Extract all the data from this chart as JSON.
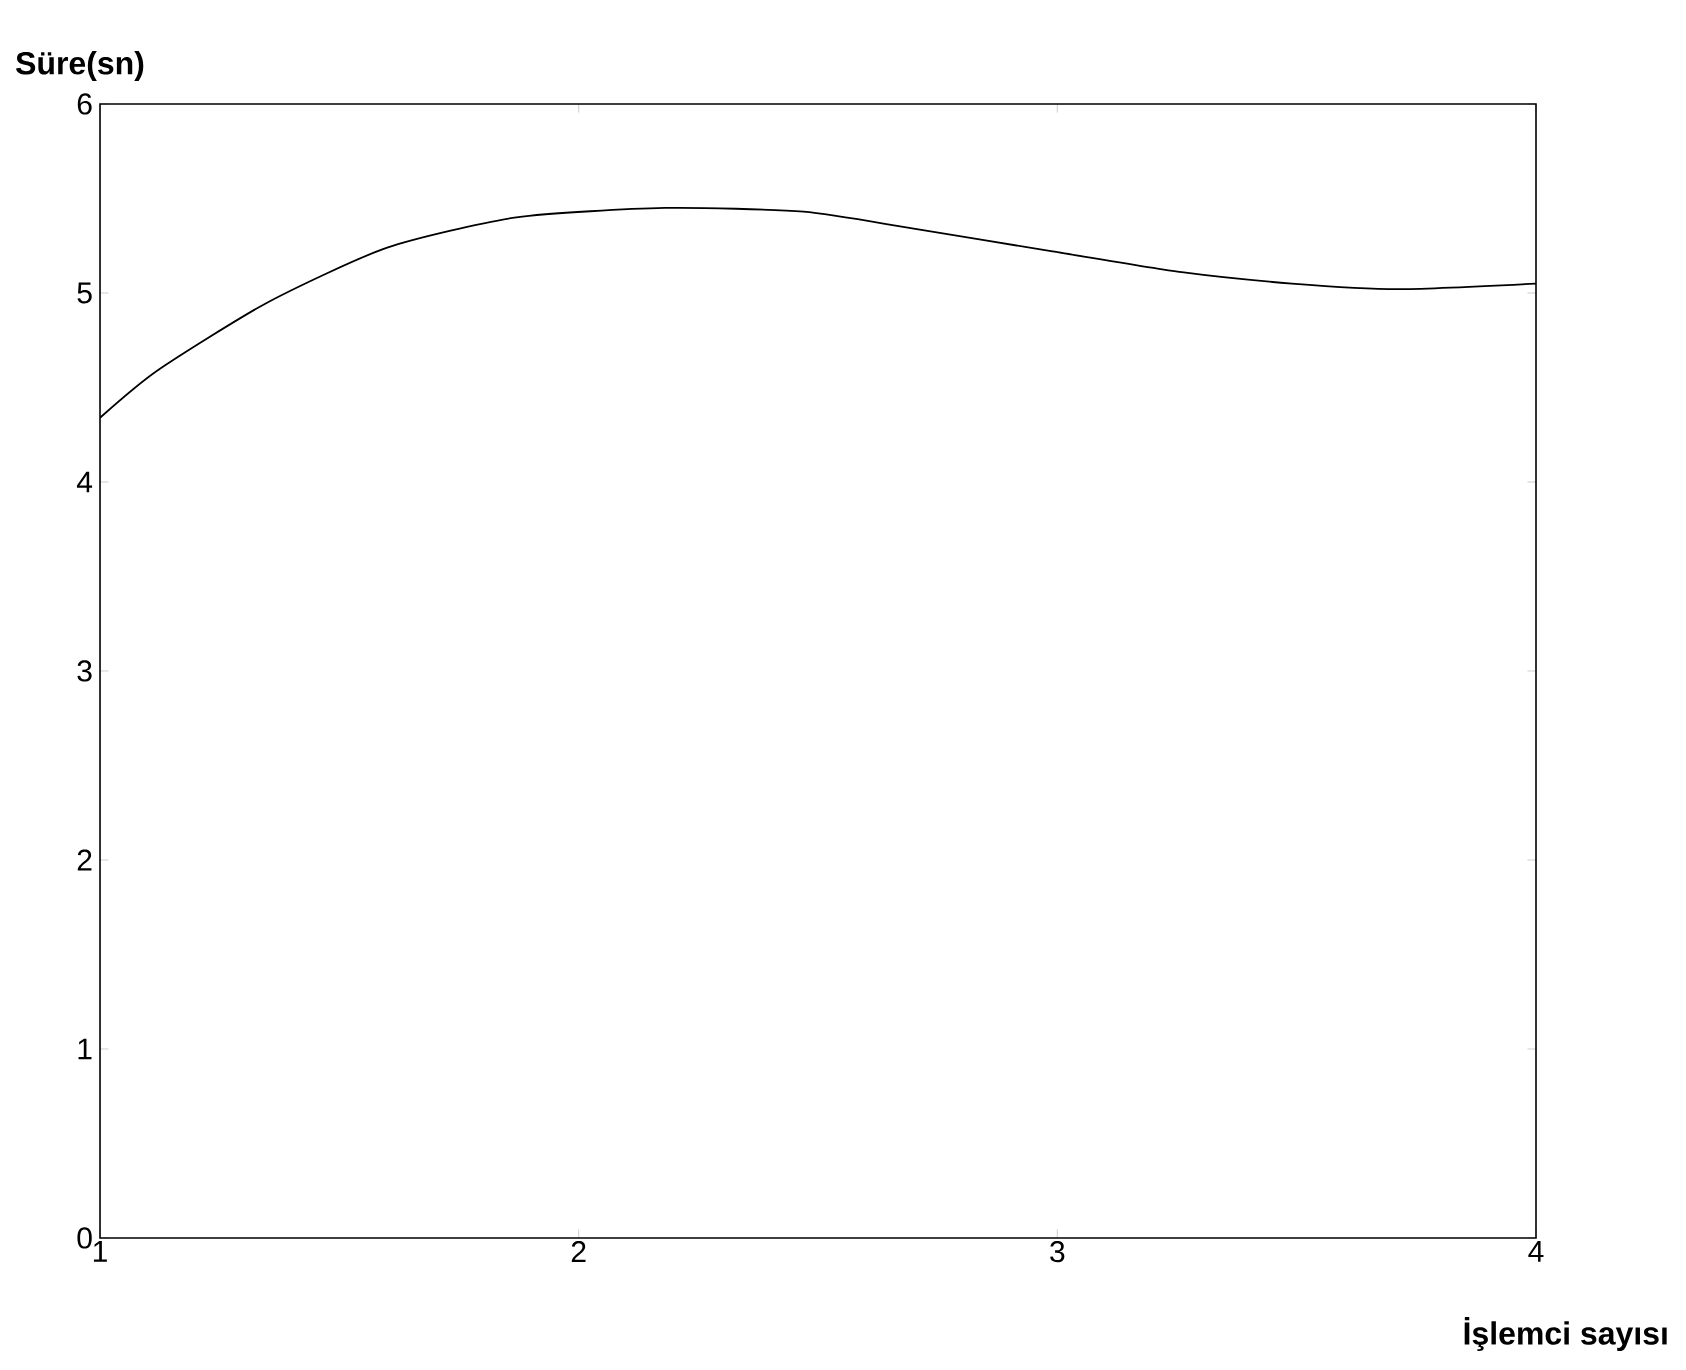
{
  "chart_data": {
    "type": "line",
    "xlabel": "İşlemci sayısı",
    "ylabel": "Süre(sn)",
    "x": [
      1,
      1.12,
      1.35,
      1.6,
      1.87,
      2.18,
      2.47,
      2.7,
      2.99,
      3.26,
      3.49,
      3.71,
      4
    ],
    "series": [
      {
        "color": "#000000",
        "values": [
          4.34,
          4.59,
          4.95,
          5.24,
          5.4,
          5.45,
          5.43,
          5.34,
          5.22,
          5.11,
          5.05,
          5.02,
          5.05
        ]
      }
    ],
    "xlim": [
      1,
      4
    ],
    "ylim": [
      0,
      6
    ],
    "xticks": [
      1,
      2,
      3,
      4
    ],
    "yticks": [
      0,
      1,
      2,
      3,
      4,
      5,
      6
    ],
    "grid": false,
    "marker": "none",
    "line_style": "solid"
  }
}
